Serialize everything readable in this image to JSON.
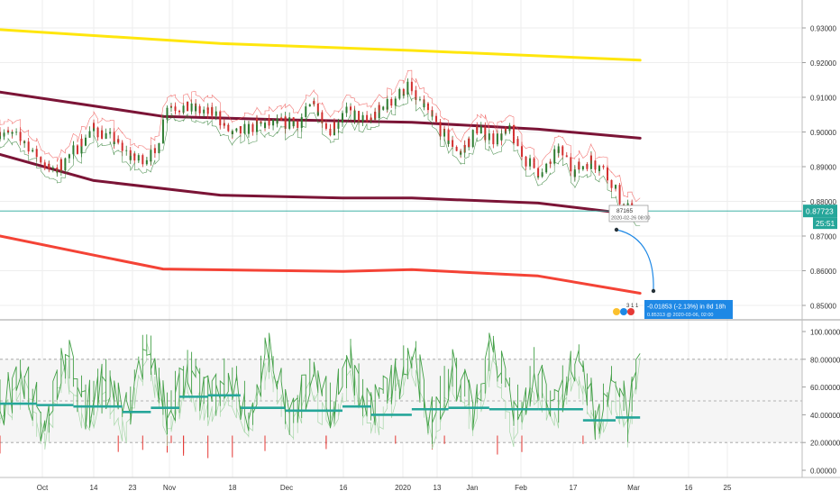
{
  "colors": {
    "background": "#ffffff",
    "grid": "#eeeeee",
    "axis_text": "#333333",
    "price_line": "#26a69a",
    "price_badge": "#26a69a",
    "yellow_ma": "#ffe60d",
    "maroon_ma": "#7b1436",
    "red_ma": "#f44336",
    "candle_up": "#2e7d32",
    "candle_down": "#d32f2f",
    "envelope": "#ef5350",
    "projection": "#1e88e5",
    "osc_up": "#43a047",
    "osc_faded": "#a5d6a7",
    "osc_down": "#e53935",
    "osc_level": "#26a69a"
  },
  "price_axis": {
    "ticks": [
      "0.93000",
      "0.92000",
      "0.91000",
      "0.90000",
      "0.89000",
      "0.88000",
      "0.87000",
      "0.86000",
      "0.85000"
    ],
    "last_price": "0.87723",
    "countdown": "25:51"
  },
  "osc_axis": {
    "ticks": [
      "100.00000",
      "80.00000",
      "60.00000",
      "40.00000",
      "20.00000",
      "0.00000"
    ]
  },
  "time_axis": {
    "labels": [
      "Oct",
      "14",
      "23",
      "Nov",
      "18",
      "Dec",
      "16",
      "2020",
      "13",
      "Jan",
      "Feb",
      "17",
      "Mar",
      "16",
      "25"
    ]
  },
  "annotations": {
    "price_tooltip": {
      "value": "87165",
      "date": "2020-02-26 08:00"
    },
    "projection": {
      "line1": "-0.01853 (-2.13%) in 8d 18h",
      "line2": "0.85313 @ 2020-03-06, 02:00"
    },
    "badge": "3 1 1"
  },
  "chart_data": [
    {
      "type": "line",
      "title": "",
      "ylim": [
        0.845,
        0.935
      ],
      "x_range": [
        "2019-09-22",
        "2020-03-31"
      ],
      "series": [
        {
          "kind": "line",
          "color_key": "yellow_ma",
          "points": [
            [
              "2019-09-22",
              0.9295
            ],
            [
              "2019-11-15",
              0.9255
            ],
            [
              "2020-01-01",
              0.9235
            ],
            [
              "2020-02-26",
              0.9207
            ]
          ]
        },
        {
          "kind": "line",
          "color_key": "maroon_ma",
          "points": [
            [
              "2019-09-22",
              0.9115
            ],
            [
              "2019-10-15",
              0.9075
            ],
            [
              "2019-11-01",
              0.9045
            ],
            [
              "2019-12-01",
              0.9035
            ],
            [
              "2020-01-01",
              0.9028
            ],
            [
              "2020-02-01",
              0.9008
            ],
            [
              "2020-02-26",
              0.8982
            ]
          ]
        },
        {
          "kind": "line",
          "color_key": "maroon_ma",
          "points": [
            [
              "2019-09-22",
              0.8935
            ],
            [
              "2019-10-15",
              0.886
            ],
            [
              "2019-11-15",
              0.8818
            ],
            [
              "2019-12-15",
              0.881
            ],
            [
              "2020-01-01",
              0.881
            ],
            [
              "2020-02-01",
              0.8795
            ],
            [
              "2020-02-26",
              0.876
            ]
          ]
        },
        {
          "kind": "line",
          "color_key": "red_ma",
          "points": [
            [
              "2019-09-22",
              0.87
            ],
            [
              "2019-10-15",
              0.8645
            ],
            [
              "2019-11-01",
              0.8605
            ],
            [
              "2019-12-15",
              0.8598
            ],
            [
              "2020-01-01",
              0.8603
            ],
            [
              "2020-02-01",
              0.8585
            ],
            [
              "2020-02-26",
              0.8535
            ]
          ]
        },
        {
          "kind": "price",
          "color_key": "candle_up",
          "points": [
            [
              "2019-09-22",
              0.9
            ],
            [
              "2019-09-28",
              0.8975
            ],
            [
              "2019-10-05",
              0.888
            ],
            [
              "2019-10-10",
              0.8945
            ],
            [
              "2019-10-15",
              0.901
            ],
            [
              "2019-10-20",
              0.8975
            ],
            [
              "2019-10-25",
              0.892
            ],
            [
              "2019-10-30",
              0.8935
            ],
            [
              "2019-11-02",
              0.908
            ],
            [
              "2019-11-08",
              0.9065
            ],
            [
              "2019-11-14",
              0.905
            ],
            [
              "2019-11-18",
              0.899
            ],
            [
              "2019-11-24",
              0.902
            ],
            [
              "2019-11-30",
              0.9025
            ],
            [
              "2019-12-04",
              0.903
            ],
            [
              "2019-12-08",
              0.908
            ],
            [
              "2019-12-12",
              0.901
            ],
            [
              "2019-12-16",
              0.906
            ],
            [
              "2019-12-21",
              0.903
            ],
            [
              "2019-12-26",
              0.908
            ],
            [
              "2019-12-31",
              0.913
            ],
            [
              "2020-01-04",
              0.907
            ],
            [
              "2020-01-09",
              0.899
            ],
            [
              "2020-01-13",
              0.894
            ],
            [
              "2020-01-17",
              0.901
            ],
            [
              "2020-01-21",
              0.898
            ],
            [
              "2020-01-25",
              0.9
            ],
            [
              "2020-01-29",
              0.892
            ],
            [
              "2020-02-02",
              0.8875
            ],
            [
              "2020-02-06",
              0.895
            ],
            [
              "2020-02-10",
              0.889
            ],
            [
              "2020-02-14",
              0.892
            ],
            [
              "2020-02-18",
              0.888
            ],
            [
              "2020-02-22",
              0.878
            ],
            [
              "2020-02-26",
              0.8772
            ]
          ]
        }
      ]
    },
    {
      "type": "line",
      "title": "",
      "ylim": [
        0,
        100
      ],
      "levels": [
        80,
        50,
        20
      ],
      "series": [
        {
          "kind": "oscillator",
          "color_key": "osc_up",
          "points": [
            [
              "2019-09-22",
              48
            ],
            [
              "2019-09-28",
              70
            ],
            [
              "2019-10-03",
              30
            ],
            [
              "2019-10-08",
              85
            ],
            [
              "2019-10-13",
              45
            ],
            [
              "2019-10-18",
              62
            ],
            [
              "2019-10-23",
              38
            ],
            [
              "2019-10-28",
              95
            ],
            [
              "2019-11-02",
              40
            ],
            [
              "2019-11-07",
              72
            ],
            [
              "2019-11-12",
              50
            ],
            [
              "2019-11-17",
              68
            ],
            [
              "2019-11-22",
              42
            ],
            [
              "2019-11-27",
              88
            ],
            [
              "2019-12-02",
              35
            ],
            [
              "2019-12-07",
              66
            ],
            [
              "2019-12-12",
              45
            ],
            [
              "2019-12-17",
              78
            ],
            [
              "2019-12-22",
              40
            ],
            [
              "2019-12-27",
              60
            ],
            [
              "2020-01-01",
              85
            ],
            [
              "2020-01-06",
              35
            ],
            [
              "2020-01-11",
              74
            ],
            [
              "2020-01-16",
              44
            ],
            [
              "2020-01-21",
              92
            ],
            [
              "2020-01-26",
              38
            ],
            [
              "2020-01-31",
              70
            ],
            [
              "2020-02-05",
              45
            ],
            [
              "2020-02-10",
              80
            ],
            [
              "2020-02-15",
              40
            ],
            [
              "2020-02-20",
              65
            ],
            [
              "2020-02-23",
              38
            ],
            [
              "2020-02-26",
              88
            ]
          ]
        },
        {
          "kind": "steps",
          "color_key": "osc_level",
          "points": [
            [
              "2019-09-22",
              48
            ],
            [
              "2019-10-01",
              47
            ],
            [
              "2019-10-10",
              46
            ],
            [
              "2019-10-22",
              42
            ],
            [
              "2019-10-29",
              45
            ],
            [
              "2019-11-05",
              53
            ],
            [
              "2019-11-12",
              54
            ],
            [
              "2019-11-20",
              45
            ],
            [
              "2019-12-01",
              43
            ],
            [
              "2019-12-15",
              46
            ],
            [
              "2019-12-22",
              40
            ],
            [
              "2020-01-01",
              44
            ],
            [
              "2020-01-10",
              45
            ],
            [
              "2020-01-20",
              44
            ],
            [
              "2020-02-01",
              44
            ],
            [
              "2020-02-12",
              36
            ],
            [
              "2020-02-20",
              38
            ],
            [
              "2020-02-26",
              38
            ]
          ]
        }
      ]
    }
  ]
}
